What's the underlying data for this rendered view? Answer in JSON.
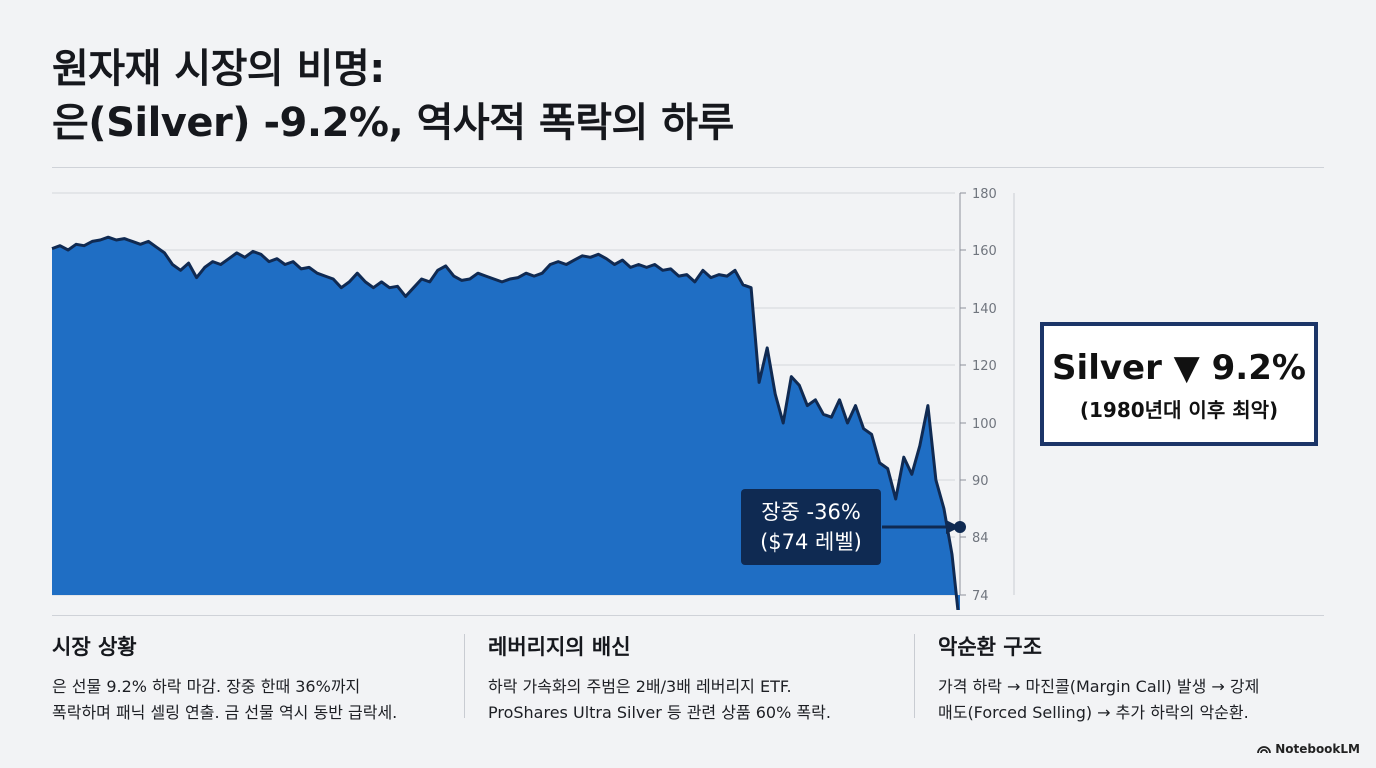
{
  "title": {
    "line1": "원자재 시장의 비명:",
    "line2": "은(Silver) -9.2%, 역사적 폭락의 하루"
  },
  "callout": {
    "main": "Silver ▼ 9.2%",
    "sub": "(1980년대 이후 최악)"
  },
  "annotation": {
    "line1": "장중 -36%",
    "line2": "($74 레벨)"
  },
  "sections": [
    {
      "heading": "시장 상황",
      "body_line1": "은 선물 9.2% 하락 마감. 장중 한때 36%까지",
      "body_line2": "폭락하며 패닉 셀링 연출. 금 선물 역시 동반 급락세."
    },
    {
      "heading": "레버리지의 배신",
      "body_line1": "하락 가속화의 주범은 2배/3배 레버리지 ETF.",
      "body_line2": "ProShares Ultra Silver 등 관련 상품 60% 폭락."
    },
    {
      "heading": "악순환 구조",
      "body_line1": "가격 하락 → 마진콜(Margin Call) 발생 → 강제",
      "body_line2": "매도(Forced Selling) → 추가 하락의 악순환."
    }
  ],
  "brand": "NotebookLM",
  "colors": {
    "area_fill": "#1f6ec4",
    "area_line": "#102a52",
    "callout_border": "#1c3568",
    "tag_bg": "#0f2a52"
  },
  "chart_data": {
    "type": "area",
    "title": "",
    "xlabel": "",
    "ylabel": "",
    "y_ticks": [
      "180",
      "160",
      "140",
      "120",
      "100",
      "90",
      "84",
      "74"
    ],
    "y_tick_values": [
      180,
      160,
      140,
      120,
      100,
      90,
      84,
      74
    ],
    "grid": "horizontal",
    "axis_side": "right",
    "series": [
      {
        "values": [
          160.5,
          161.5,
          160,
          162,
          161.5,
          163,
          163.5,
          164.5,
          163.5,
          164,
          163,
          162,
          163,
          161,
          159,
          155,
          153,
          155.5,
          150.5,
          154,
          156,
          155,
          157,
          159,
          157.5,
          159.5,
          158.5,
          156,
          157,
          155,
          156,
          153.5,
          154,
          152,
          151,
          150,
          147,
          149,
          152,
          149,
          147,
          149,
          147,
          147.5,
          144,
          147,
          150,
          149,
          153,
          154.5,
          151,
          149.5,
          150,
          152,
          151,
          150,
          149,
          150,
          150.5,
          152,
          151,
          152,
          155,
          156,
          155,
          156.5,
          158,
          157.5,
          158.5,
          157,
          155,
          156.5,
          154,
          155,
          154,
          155,
          153,
          153.5,
          151,
          151.5,
          149,
          153,
          150.5,
          151.5,
          151,
          153,
          148,
          147,
          114,
          126,
          110,
          100,
          116,
          113,
          106,
          108,
          103,
          102,
          108,
          100,
          106,
          99,
          98,
          93,
          92,
          88,
          94,
          91,
          96,
          106,
          90,
          87,
          81,
          68
        ]
      }
    ]
  }
}
